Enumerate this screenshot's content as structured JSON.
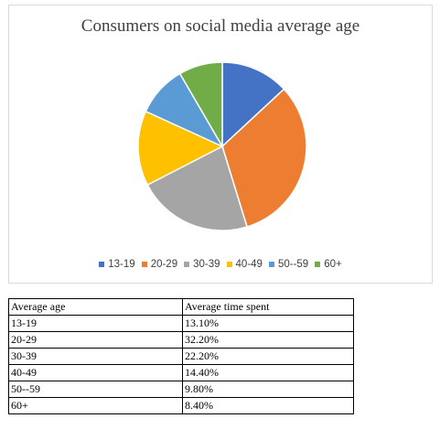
{
  "chart_data": {
    "type": "pie",
    "title": "Consumers on social media average age",
    "categories": [
      "13-19",
      "20-29",
      "30-39",
      "40-49",
      "50--59",
      "60+"
    ],
    "values": [
      13.1,
      32.2,
      22.2,
      14.4,
      9.8,
      8.4
    ],
    "colors": [
      "#4472c4",
      "#ed7d31",
      "#a5a5a5",
      "#ffc000",
      "#5b9bd5",
      "#70ad47"
    ],
    "legend_position": "bottom"
  },
  "table": {
    "headers": [
      "Average age",
      "Average time spent"
    ],
    "rows": [
      [
        "13-19",
        "13.10%"
      ],
      [
        "20-29",
        "32.20%"
      ],
      [
        "30-39",
        "22.20%"
      ],
      [
        "40-49",
        "14.40%"
      ],
      [
        "50--59",
        "9.80%"
      ],
      [
        "60+",
        "8.40%"
      ]
    ]
  }
}
